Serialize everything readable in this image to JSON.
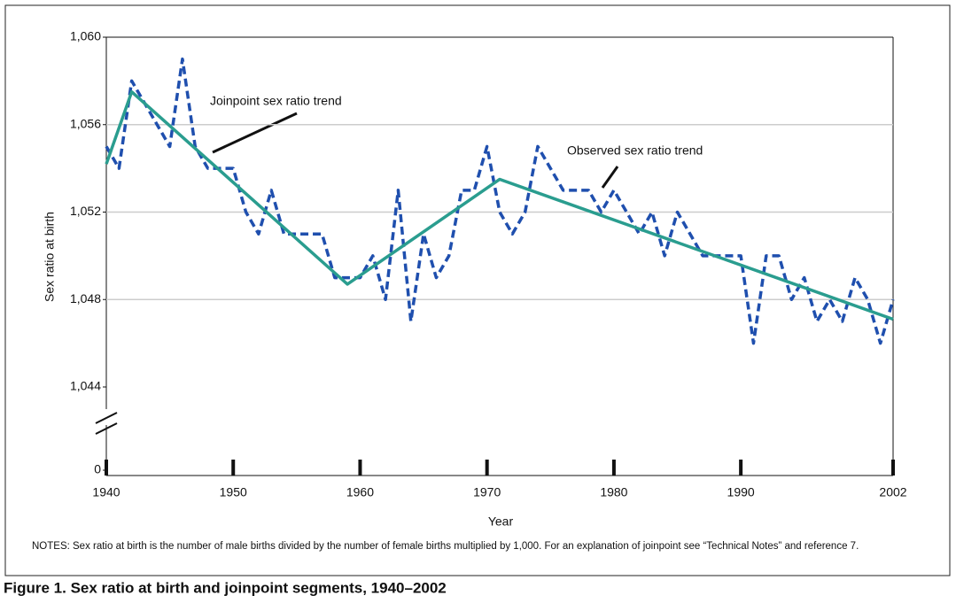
{
  "chart_data": {
    "type": "line",
    "y_label": "Sex ratio at birth",
    "x_label": "Year",
    "notes": "NOTES: Sex ratio at birth is the number of male births divided by the number of female births multiplied by 1,000. For an explanation of joinpoint see “Technical Notes” and reference 7.",
    "caption": "Figure 1. Sex ratio at birth and joinpoint segments, 1940–2002",
    "annotations": [
      "Joinpoint sex ratio trend",
      "Observed sex ratio trend"
    ],
    "xlim": [
      1940,
      2002
    ],
    "xticks": [
      1940,
      1950,
      1960,
      1970,
      1980,
      1990,
      2002
    ],
    "ylim": [
      1044,
      1060
    ],
    "yticks": [
      0,
      {
        "value": 1044,
        "label": "1,044"
      },
      {
        "value": 1048,
        "label": "1,048"
      },
      {
        "value": 1052,
        "label": "1,052"
      },
      {
        "value": 1056,
        "label": "1,056"
      },
      {
        "value": 1060,
        "label": "1,060"
      }
    ],
    "axis_break": true,
    "grid": true,
    "series": [
      {
        "name": "Observed sex ratio trend",
        "color": "#1f4fae",
        "dashed": true,
        "x": [
          1940,
          1941,
          1942,
          1943,
          1944,
          1945,
          1946,
          1947,
          1948,
          1949,
          1950,
          1951,
          1952,
          1953,
          1954,
          1955,
          1956,
          1957,
          1958,
          1959,
          1960,
          1961,
          1962,
          1963,
          1964,
          1965,
          1966,
          1967,
          1968,
          1969,
          1970,
          1971,
          1972,
          1973,
          1974,
          1975,
          1976,
          1977,
          1978,
          1979,
          1980,
          1981,
          1982,
          1983,
          1984,
          1985,
          1986,
          1987,
          1988,
          1989,
          1990,
          1991,
          1992,
          1993,
          1994,
          1995,
          1996,
          1997,
          1998,
          1999,
          2000,
          2001,
          2002
        ],
        "values": [
          1055,
          1054,
          1058,
          1057,
          1056,
          1055,
          1059,
          1055,
          1054,
          1054,
          1054,
          1052,
          1051,
          1053,
          1051,
          1051,
          1051,
          1051,
          1049,
          1049,
          1049,
          1050,
          1048,
          1053,
          1047,
          1051,
          1049,
          1050,
          1053,
          1053,
          1055,
          1052,
          1051,
          1052,
          1055,
          1054,
          1053,
          1053,
          1053,
          1052,
          1053,
          1052,
          1051,
          1052,
          1050,
          1052,
          1051,
          1050,
          1050,
          1050,
          1050,
          1046,
          1050,
          1050,
          1048,
          1049,
          1047,
          1048,
          1047,
          1049,
          1048,
          1046,
          1048
        ]
      },
      {
        "name": "Joinpoint sex ratio trend",
        "color": "#2a9d8f",
        "dashed": false,
        "x": [
          1940,
          1942,
          1959,
          1971,
          2002
        ],
        "values": [
          1054.2,
          1057.5,
          1048.7,
          1053.5,
          1047.1
        ]
      }
    ]
  }
}
